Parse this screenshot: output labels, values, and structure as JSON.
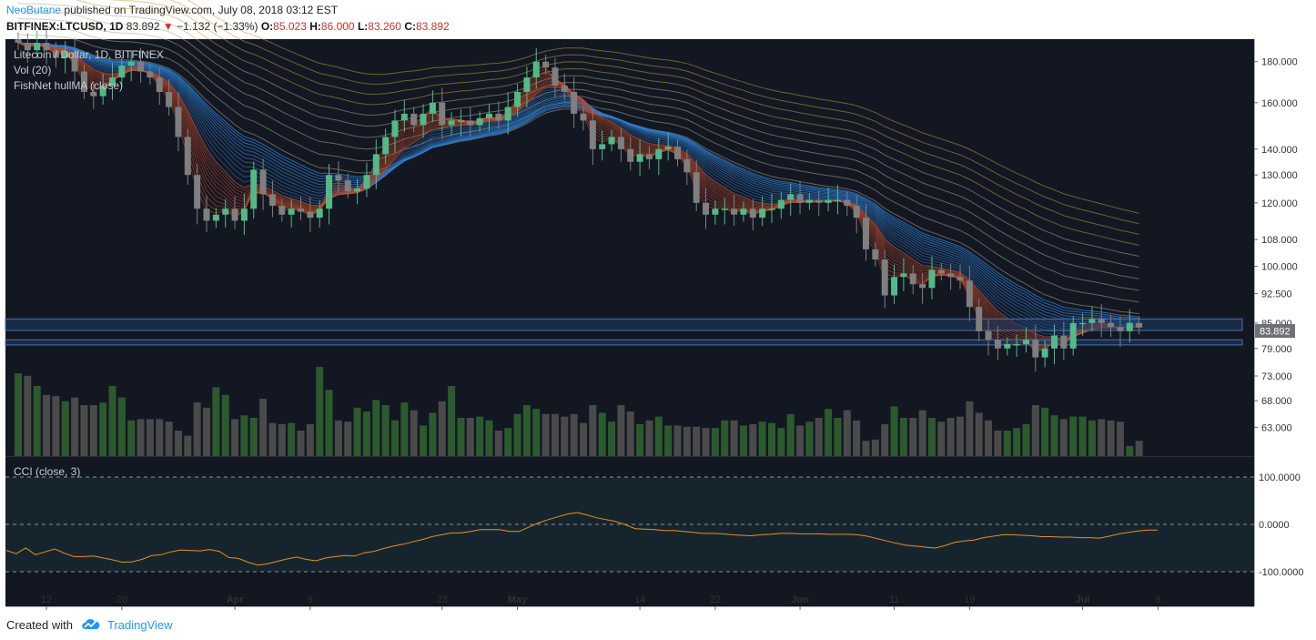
{
  "header": {
    "user": "NeoButane",
    "published": "published on TradingView.com, July 08, 2018 03:12 EST",
    "symbol": "BITFINEX:LTCUSD, 1D",
    "last": "83.892",
    "change": "−1.132 (−1.33%)",
    "open_label": "O:",
    "open": "85.023",
    "high_label": "H:",
    "high": "86.000",
    "low_label": "L:",
    "low": "83.260",
    "close_label": "C:",
    "close": "83.892"
  },
  "legend": {
    "title": "Litecoin / Dollar, 1D, BITFINEX",
    "vol": "Vol (20)",
    "indicator": "FishNet hullMA (close)",
    "cci": "CCI (close, 3)"
  },
  "footer": {
    "created_with": "Created with",
    "brand": "TradingView"
  },
  "colors": {
    "pane_bg": "#131722",
    "cci_bg": "#16252d",
    "up": "#53b987",
    "down": "#7f7f7f",
    "vol_up": "#2c5a2e",
    "vol_down": "#4a4a4a",
    "red_ribbon": "#c74a2a",
    "blue_ribbon": "#2d7fd3",
    "cci_line": "#e58e1f",
    "zone": "#1d3a66"
  },
  "chart_data": {
    "type": "candlestick",
    "symbol": "BITFINEX:LTCUSD",
    "timeframe": "1D",
    "title": "Litecoin / Dollar, 1D, BITFINEX",
    "y_axis_scale": "log",
    "y_range": [
      58,
      192
    ],
    "y_ticks": [
      180,
      160,
      140,
      130,
      120,
      108,
      100,
      92.5,
      85,
      79,
      73,
      68,
      63
    ],
    "y_tick_labels": [
      "180.000",
      "160.000",
      "140.000",
      "130.000",
      "120.000",
      "108.000",
      "100.000",
      "92.500",
      "85.000",
      "79.000",
      "73.000",
      "68.000",
      "63.000"
    ],
    "last_price_label": "83.892",
    "x_tick_labels": [
      {
        "label": "12",
        "bar": 3
      },
      {
        "label": "20",
        "bar": 11
      },
      {
        "label": "Apr",
        "bar": 23
      },
      {
        "label": "9",
        "bar": 31
      },
      {
        "label": "23",
        "bar": 45
      },
      {
        "label": "May",
        "bar": 53
      },
      {
        "label": "14",
        "bar": 66
      },
      {
        "label": "22",
        "bar": 74
      },
      {
        "label": "Jun",
        "bar": 83
      },
      {
        "label": "11",
        "bar": 93
      },
      {
        "label": "19",
        "bar": 101
      },
      {
        "label": "Jul",
        "bar": 113
      },
      {
        "label": "9",
        "bar": 121
      }
    ],
    "support_zones": [
      [
        83.2,
        86.0
      ],
      [
        79.8,
        81.0
      ]
    ],
    "close_prices": [
      190,
      186,
      190,
      186,
      182,
      185,
      175,
      165,
      163,
      168,
      172,
      178,
      180,
      175,
      172,
      165,
      158,
      145,
      130,
      118,
      114,
      116,
      118,
      114,
      118,
      132,
      123,
      119,
      116,
      118,
      117,
      115,
      118,
      130,
      128,
      124,
      125,
      130,
      138,
      145,
      152,
      155,
      150,
      155,
      160,
      150,
      152,
      152,
      150,
      153,
      155,
      152,
      158,
      165,
      172,
      180,
      177,
      168,
      165,
      155,
      152,
      140,
      142,
      145,
      140,
      135,
      138,
      136,
      140,
      141,
      136,
      131,
      120,
      116,
      118,
      118,
      116,
      118,
      115,
      118,
      118,
      121,
      123,
      120,
      121,
      120,
      121,
      121,
      119,
      115,
      105,
      102,
      92,
      97,
      98,
      95,
      94,
      99,
      98,
      97,
      96,
      89,
      83,
      81,
      79,
      80,
      80,
      81,
      77,
      79,
      82,
      79,
      85,
      85,
      86,
      85,
      84,
      83,
      85,
      83.9
    ],
    "volume": [
      65,
      63,
      55,
      48,
      47,
      43,
      46,
      40,
      40,
      42,
      55,
      46,
      28,
      29,
      29,
      29,
      27,
      20,
      16,
      42,
      38,
      54,
      48,
      29,
      32,
      30,
      45,
      26,
      25,
      26,
      20,
      25,
      70,
      52,
      28,
      27,
      38,
      35,
      44,
      40,
      28,
      42,
      36,
      24,
      34,
      43,
      55,
      30,
      30,
      31,
      28,
      20,
      22,
      33,
      40,
      37,
      33,
      33,
      31,
      33,
      26,
      40,
      34,
      27,
      40,
      35,
      25,
      28,
      31,
      24,
      24,
      23,
      23,
      22,
      22,
      28,
      28,
      24,
      25,
      27,
      26,
      22,
      33,
      24,
      27,
      30,
      37,
      30,
      36,
      28,
      12,
      13,
      25,
      39,
      30,
      30,
      36,
      30,
      27,
      30,
      31,
      43,
      34,
      28,
      20,
      20,
      22,
      25,
      40,
      38,
      32,
      29,
      31,
      31,
      28,
      29,
      28,
      27,
      8,
      12
    ],
    "cci_range": [
      -150,
      140
    ],
    "cci_ticks": [
      100,
      0,
      -100
    ],
    "cci_tick_labels": [
      "100.0000",
      "0.0000",
      "-100.0000"
    ],
    "cci": [
      -55,
      -62,
      -50,
      -64,
      -58,
      -52,
      -61,
      -68,
      -68,
      -67,
      -71,
      -75,
      -80,
      -79,
      -74,
      -66,
      -64,
      -58,
      -54,
      -55,
      -56,
      -53,
      -57,
      -70,
      -72,
      -80,
      -86,
      -83,
      -78,
      -73,
      -69,
      -74,
      -77,
      -71,
      -68,
      -66,
      -67,
      -60,
      -57,
      -51,
      -46,
      -42,
      -37,
      -32,
      -26,
      -22,
      -18,
      -18,
      -15,
      -11,
      -11,
      -11,
      -15,
      -15,
      -6,
      3,
      10,
      16,
      22,
      25,
      20,
      14,
      10,
      6,
      -1,
      -9,
      -10,
      -11,
      -13,
      -13,
      -15,
      -17,
      -19,
      -19,
      -20,
      -22,
      -23,
      -24,
      -22,
      -21,
      -19,
      -19,
      -20,
      -20,
      -20,
      -21,
      -21,
      -21,
      -22,
      -25,
      -30,
      -35,
      -40,
      -44,
      -46,
      -48,
      -50,
      -45,
      -38,
      -35,
      -33,
      -28,
      -25,
      -22,
      -22,
      -23,
      -24,
      -26,
      -26,
      -27,
      -27,
      -28,
      -28,
      -29,
      -25,
      -20,
      -17,
      -14,
      -12,
      -12
    ]
  }
}
